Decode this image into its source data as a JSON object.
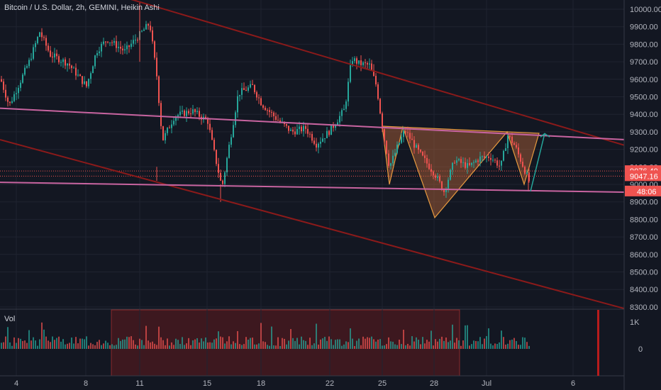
{
  "header": {
    "title": "Bitcoin / U.S. Dollar, 2h, GEMINI, Heikin Ashi"
  },
  "volume_pane": {
    "label": "Vol",
    "ticks": [
      "1K",
      "0"
    ]
  },
  "price_axis": {
    "ticks": [
      "10000.00",
      "9900.00",
      "9800.00",
      "9700.00",
      "9600.00",
      "9500.00",
      "9400.00",
      "9300.00",
      "9200.00",
      "9100.00",
      "9000.00",
      "8900.00",
      "8800.00",
      "8700.00",
      "8600.00",
      "8500.00",
      "8400.00",
      "8300.00"
    ]
  },
  "price_tags": [
    {
      "text": "9076.40",
      "color": "#ef5350"
    },
    {
      "text": "9047.16",
      "color": "#ef5350"
    },
    {
      "text": "48:06",
      "color": "#ef5350"
    }
  ],
  "colors": {
    "background": "#131722",
    "up": "#26a69a",
    "down": "#ef5350",
    "channel": "#8b1a1a",
    "neckline": "#c864a0",
    "pattern_fill": "#b8653a",
    "pattern_line": "#e69a40",
    "arrow": "#26a69a"
  },
  "chart_data": {
    "type": "candlestick",
    "title": "Bitcoin / U.S. Dollar, 2h, GEMINI, Heikin Ashi",
    "x_tick_labels": [
      "4",
      "8",
      "11",
      "15",
      "18",
      "22",
      "25",
      "28",
      "Jul",
      "6"
    ],
    "ylim": [
      8280,
      10040
    ],
    "current_price": 9047.16,
    "price_lines": [
      9076.4,
      9047.16
    ],
    "approx_close_path": [
      {
        "x": "4",
        "y": 9520
      },
      {
        "x": "8",
        "y": 9730
      },
      {
        "x": "11",
        "y": 9900
      },
      {
        "x": "15",
        "y": 8960
      },
      {
        "x": "18",
        "y": 9450
      },
      {
        "x": "22",
        "y": 9680
      },
      {
        "x": "25",
        "y": 9250
      },
      {
        "x": "28",
        "y": 8960
      },
      {
        "x": "Jul",
        "y": 9260
      },
      {
        "x": "Jul",
        "y": 9000
      }
    ],
    "annotations": {
      "channel_upper": [
        {
          "x": "4",
          "y": 10250
        },
        {
          "x": "6",
          "y": 9310
        }
      ],
      "channel_lower": [
        {
          "x": "4",
          "y": 9230
        },
        {
          "x": "6",
          "y": 8370
        }
      ],
      "neckline": [
        {
          "x": "4",
          "y": 9430
        },
        {
          "x": "6",
          "y": 9270
        }
      ],
      "support": [
        {
          "x": "4",
          "y": 9010
        },
        {
          "x": "6",
          "y": 8960
        }
      ],
      "pattern": "inverse head and shoulders with projected breakout arrow"
    },
    "volume_ticks": [
      "1K",
      "0"
    ]
  }
}
